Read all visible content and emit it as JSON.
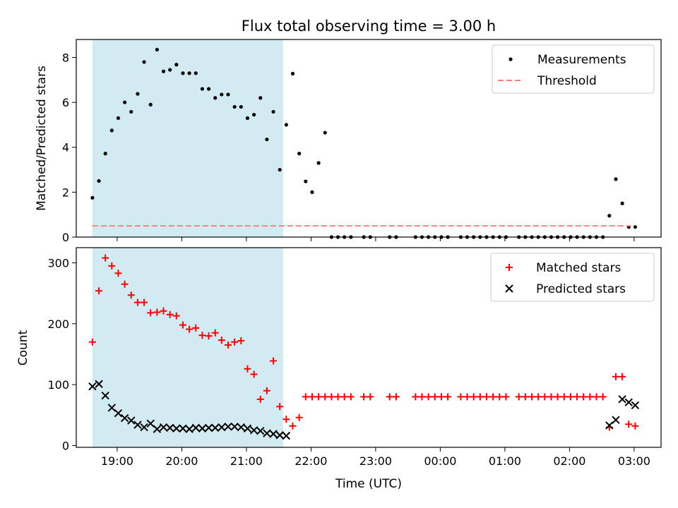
{
  "chart_data": [
    {
      "type": "scatter",
      "title": "Flux total observing time = 3.00 h",
      "xlabel": "",
      "ylabel": "Matched/Predicted stars",
      "xlim": [
        "18:22",
        "03:25"
      ],
      "ylim": [
        0,
        8.8
      ],
      "yticks": [
        0,
        2,
        4,
        6,
        8
      ],
      "shaded_interval": [
        "18:37",
        "21:34"
      ],
      "shaded_color": "#add8e6",
      "legend_position": "upper right",
      "series": [
        {
          "name": "Measurements",
          "marker": "dot",
          "color": "#000000",
          "x": [
            "18:37",
            "18:43",
            "18:49",
            "18:55",
            "19:01",
            "19:07",
            "19:13",
            "19:19",
            "19:25",
            "19:31",
            "19:37",
            "19:43",
            "19:49",
            "19:55",
            "20:01",
            "20:07",
            "20:13",
            "20:19",
            "20:25",
            "20:31",
            "20:37",
            "20:43",
            "20:49",
            "20:55",
            "21:01",
            "21:07",
            "21:13",
            "21:19",
            "21:25",
            "21:31",
            "21:37",
            "21:43",
            "21:49",
            "21:55",
            "22:01",
            "22:07",
            "22:13",
            "22:19",
            "22:25",
            "22:31",
            "22:37",
            "22:49",
            "22:55",
            "23:13",
            "23:19",
            "23:37",
            "23:43",
            "23:49",
            "23:55",
            "00:01",
            "00:07",
            "00:19",
            "00:25",
            "00:31",
            "00:37",
            "00:43",
            "00:49",
            "00:55",
            "01:01",
            "01:13",
            "01:19",
            "01:25",
            "01:31",
            "01:37",
            "01:43",
            "01:49",
            "01:55",
            "02:01",
            "02:07",
            "02:13",
            "02:19",
            "02:25",
            "02:31",
            "02:37",
            "02:43",
            "02:49",
            "02:55",
            "03:01"
          ],
          "y": [
            1.75,
            2.5,
            3.72,
            4.75,
            5.3,
            6.0,
            5.58,
            6.38,
            7.8,
            5.9,
            8.35,
            7.38,
            7.45,
            7.68,
            7.3,
            7.3,
            7.3,
            6.6,
            6.6,
            6.2,
            6.35,
            6.35,
            5.8,
            5.8,
            5.3,
            5.45,
            6.2,
            4.35,
            5.58,
            3.0,
            5.0,
            7.28,
            3.72,
            2.48,
            2.0,
            3.3,
            4.65,
            0,
            0,
            0,
            0,
            0,
            0,
            0,
            0,
            0,
            0,
            0,
            0,
            0,
            0,
            0,
            0,
            0,
            0,
            0,
            0,
            0,
            0,
            0,
            0,
            0,
            0,
            0,
            0,
            0,
            0,
            0,
            0,
            0,
            0,
            0,
            0,
            0.95,
            2.58,
            1.5,
            0.45,
            0.45
          ]
        },
        {
          "name": "Threshold",
          "style": "dashed",
          "color": "#ff7f7f",
          "x": [
            "18:37",
            "02:57"
          ],
          "y": [
            0.5,
            0.5
          ]
        }
      ]
    },
    {
      "type": "scatter",
      "title": "",
      "xlabel": "Time (UTC)",
      "ylabel": "Count",
      "xlim": [
        "18:22",
        "03:25"
      ],
      "ylim": [
        -3,
        325
      ],
      "yticks": [
        0,
        100,
        200,
        300
      ],
      "xticks": [
        "19:00",
        "20:00",
        "21:00",
        "22:00",
        "23:00",
        "00:00",
        "01:00",
        "02:00",
        "03:00"
      ],
      "shaded_interval": [
        "18:37",
        "21:34"
      ],
      "shaded_color": "#add8e6",
      "legend_position": "upper right",
      "series": [
        {
          "name": "Matched stars",
          "marker": "plus",
          "color": "#ff0000",
          "x": [
            "18:37",
            "18:43",
            "18:49",
            "18:55",
            "19:01",
            "19:07",
            "19:13",
            "19:19",
            "19:25",
            "19:31",
            "19:37",
            "19:43",
            "19:49",
            "19:55",
            "20:01",
            "20:07",
            "20:13",
            "20:19",
            "20:25",
            "20:31",
            "20:37",
            "20:43",
            "20:49",
            "20:55",
            "21:01",
            "21:07",
            "21:13",
            "21:19",
            "21:25",
            "21:31",
            "21:37",
            "21:43",
            "21:49",
            "21:55",
            "22:01",
            "22:07",
            "22:13",
            "22:19",
            "22:25",
            "22:31",
            "22:37",
            "22:49",
            "22:55",
            "23:13",
            "23:19",
            "23:37",
            "23:43",
            "23:49",
            "23:55",
            "00:01",
            "00:07",
            "00:19",
            "00:25",
            "00:31",
            "00:37",
            "00:43",
            "00:49",
            "00:55",
            "01:01",
            "01:13",
            "01:19",
            "01:25",
            "01:31",
            "01:37",
            "01:43",
            "01:49",
            "01:55",
            "02:01",
            "02:07",
            "02:13",
            "02:19",
            "02:25",
            "02:31",
            "02:37",
            "02:43",
            "02:49",
            "02:55",
            "03:01"
          ],
          "y": [
            170,
            254,
            308,
            295,
            283,
            265,
            247,
            235,
            235,
            218,
            219,
            221,
            215,
            213,
            198,
            191,
            193,
            181,
            180,
            185,
            173,
            165,
            170,
            172,
            126,
            117,
            76,
            90,
            139,
            64,
            43,
            32,
            46,
            80,
            80,
            80,
            80,
            80,
            80,
            80,
            80,
            80,
            80,
            80,
            80,
            80,
            80,
            80,
            80,
            80,
            80,
            80,
            80,
            80,
            80,
            80,
            80,
            80,
            80,
            80,
            80,
            80,
            80,
            80,
            80,
            80,
            80,
            80,
            80,
            80,
            80,
            80,
            80,
            30,
            113,
            113,
            35,
            32
          ]
        },
        {
          "name": "Predicted stars",
          "marker": "x",
          "color": "#000000",
          "x": [
            "18:37",
            "18:43",
            "18:49",
            "18:55",
            "19:01",
            "19:07",
            "19:13",
            "19:19",
            "19:25",
            "19:31",
            "19:37",
            "19:43",
            "19:49",
            "19:55",
            "20:01",
            "20:07",
            "20:13",
            "20:19",
            "20:25",
            "20:31",
            "20:37",
            "20:43",
            "20:49",
            "20:55",
            "21:01",
            "21:07",
            "21:13",
            "21:19",
            "21:25",
            "21:31",
            "21:37",
            "02:37",
            "02:43",
            "02:49",
            "02:55",
            "03:01"
          ],
          "y": [
            97,
            101,
            82,
            62,
            53,
            45,
            41,
            34,
            30,
            36,
            27,
            30,
            29,
            28,
            28,
            27,
            29,
            28,
            29,
            29,
            30,
            31,
            31,
            30,
            28,
            25,
            24,
            20,
            19,
            17,
            16,
            33,
            42,
            76,
            71,
            66
          ]
        }
      ]
    }
  ]
}
